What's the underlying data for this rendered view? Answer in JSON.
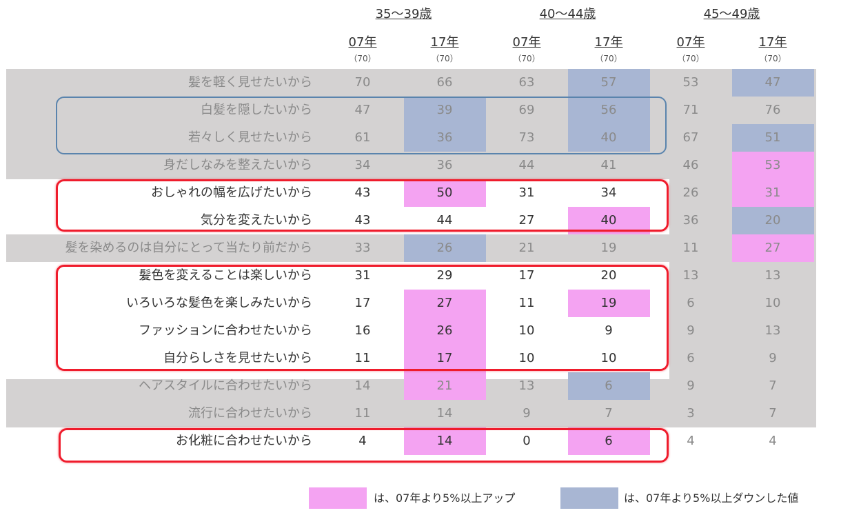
{
  "colors": {
    "band": "#d4d2d2",
    "up": "#f4a3f2",
    "down": "#a8b6d3",
    "frame_blue": "#5a84ad",
    "frame_red": "#ef1c2c"
  },
  "chart_data": {
    "type": "table",
    "groups": [
      {
        "label": "35～39歳",
        "columns": [
          {
            "year": "07年",
            "n": "（70）"
          },
          {
            "year": "17年",
            "n": "（70）"
          }
        ]
      },
      {
        "label": "40～44歳",
        "columns": [
          {
            "year": "07年",
            "n": "（70）"
          },
          {
            "year": "17年",
            "n": "（70）"
          }
        ]
      },
      {
        "label": "45～49歳",
        "columns": [
          {
            "year": "07年",
            "n": "（70）"
          },
          {
            "year": "17年",
            "n": "（70）"
          }
        ]
      }
    ],
    "rows": [
      {
        "label": "髪を軽く見せたいから",
        "values": [
          "70",
          "66",
          "63",
          "57",
          "53",
          "47"
        ],
        "marks": [
          null,
          null,
          null,
          "down",
          null,
          "down"
        ]
      },
      {
        "label": "白髪を隠したいから",
        "values": [
          "47",
          "39",
          "69",
          "56",
          "71",
          "76"
        ],
        "marks": [
          null,
          "down",
          null,
          "down",
          null,
          null
        ]
      },
      {
        "label": "若々しく見せたいから",
        "values": [
          "61",
          "36",
          "73",
          "40",
          "67",
          "51"
        ],
        "marks": [
          null,
          "down",
          null,
          "down",
          null,
          "down"
        ]
      },
      {
        "label": "身だしなみを整えたいから",
        "values": [
          "34",
          "36",
          "44",
          "41",
          "46",
          "53"
        ],
        "marks": [
          null,
          null,
          null,
          null,
          null,
          "up"
        ]
      },
      {
        "label": "おしゃれの幅を広げたいから",
        "values": [
          "43",
          "50",
          "31",
          "34",
          "26",
          "31"
        ],
        "marks": [
          null,
          "up",
          null,
          null,
          null,
          "up"
        ]
      },
      {
        "label": "気分を変えたいから",
        "values": [
          "43",
          "44",
          "27",
          "40",
          "36",
          "20"
        ],
        "marks": [
          null,
          null,
          null,
          "up",
          null,
          "down"
        ]
      },
      {
        "label": "髪を染めるのは自分にとって当たり前だから",
        "values": [
          "33",
          "26",
          "21",
          "19",
          "11",
          "27"
        ],
        "marks": [
          null,
          "down",
          null,
          null,
          null,
          "up"
        ]
      },
      {
        "label": "髪色を変えることは楽しいから",
        "values": [
          "31",
          "29",
          "17",
          "20",
          "13",
          "13"
        ],
        "marks": [
          null,
          null,
          null,
          null,
          null,
          null
        ]
      },
      {
        "label": "いろいろな髪色を楽しみたいから",
        "values": [
          "17",
          "27",
          "11",
          "19",
          "6",
          "10"
        ],
        "marks": [
          null,
          "up",
          null,
          "up",
          null,
          null
        ]
      },
      {
        "label": "ファッションに合わせたいから",
        "values": [
          "16",
          "26",
          "10",
          "9",
          "9",
          "13"
        ],
        "marks": [
          null,
          "up",
          null,
          null,
          null,
          null
        ]
      },
      {
        "label": "自分らしさを見せたいから",
        "values": [
          "11",
          "17",
          "10",
          "10",
          "6",
          "9"
        ],
        "marks": [
          null,
          "up",
          null,
          null,
          null,
          null
        ]
      },
      {
        "label": "ヘアスタイルに合わせたいから",
        "values": [
          "14",
          "21",
          "13",
          "6",
          "9",
          "7"
        ],
        "marks": [
          null,
          "up",
          null,
          "down",
          null,
          null
        ]
      },
      {
        "label": "流行に合わせたいから",
        "values": [
          "11",
          "14",
          "9",
          "7",
          "3",
          "7"
        ],
        "marks": [
          null,
          null,
          null,
          null,
          null,
          null
        ]
      },
      {
        "label": "お化粧に合わせたいから",
        "values": [
          "4",
          "14",
          "0",
          "6",
          "4",
          "4"
        ],
        "marks": [
          null,
          "up",
          null,
          "up",
          null,
          null
        ]
      }
    ],
    "legend": [
      {
        "key": "up",
        "text": "は、07年より5%以上アップ"
      },
      {
        "key": "down",
        "text": "は、07年より5%以上ダウンした値"
      }
    ]
  }
}
